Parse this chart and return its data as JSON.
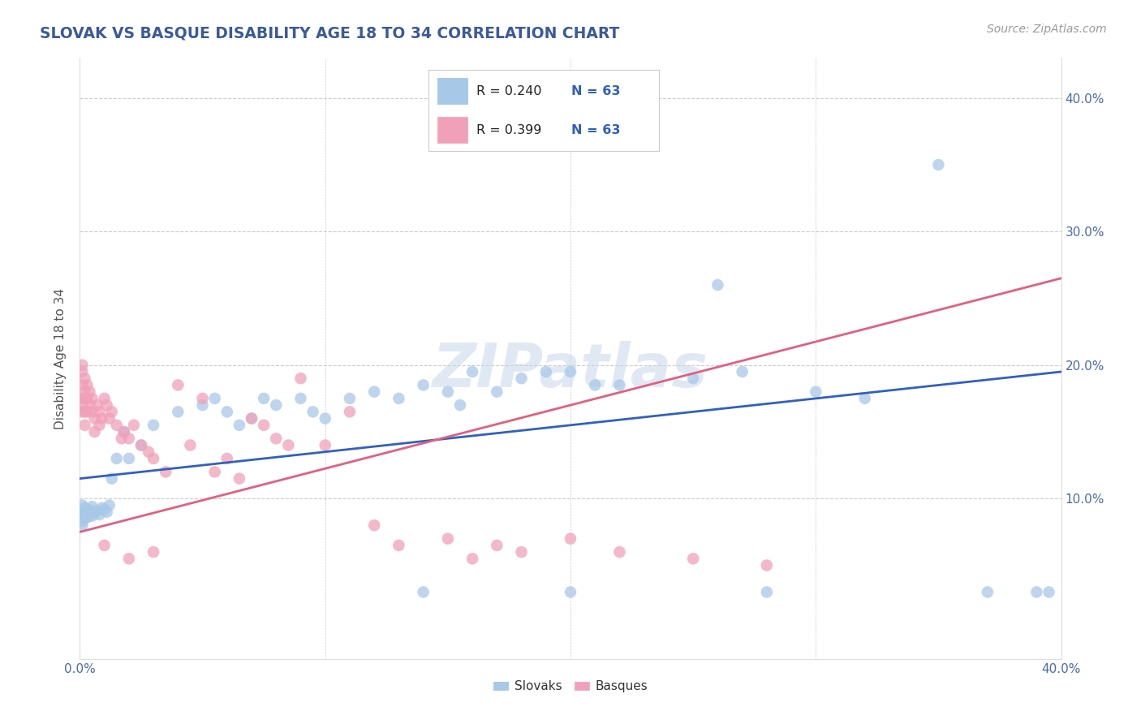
{
  "title": "SLOVAK VS BASQUE DISABILITY AGE 18 TO 34 CORRELATION CHART",
  "source_text": "Source: ZipAtlas.com",
  "ylabel": "Disability Age 18 to 34",
  "xlim": [
    0.0,
    0.4
  ],
  "ylim": [
    -0.02,
    0.43
  ],
  "x_ticks": [
    0.0,
    0.1,
    0.2,
    0.3,
    0.4
  ],
  "x_tick_labels": [
    "0.0%",
    "",
    "",
    "",
    "40.0%"
  ],
  "y_ticks": [
    0.0,
    0.1,
    0.2,
    0.3,
    0.4
  ],
  "y_tick_labels_right": [
    "",
    "10.0%",
    "20.0%",
    "30.0%",
    "40.0%"
  ],
  "slovak_color": "#a8c8e8",
  "basque_color": "#f0a0b8",
  "slovak_line_color": "#3060c0",
  "basque_line_color": "#e06080",
  "slovak_R": 0.24,
  "basque_R": 0.399,
  "N": 63,
  "watermark": "ZIPatlas",
  "watermark_color": "#c8d8ea",
  "background_color": "#ffffff",
  "grid_color": "#cccccc",
  "title_color": "#3a5a9a",
  "axis_text_color": "#4a6aaa",
  "legend_text_color": "#3060c0",
  "sk_line_y0": 0.115,
  "sk_line_y1": 0.195,
  "bq_line_y0": 0.075,
  "bq_line_y1": 0.265,
  "slovak_x": [
    0.001,
    0.001,
    0.001,
    0.001,
    0.001,
    0.002,
    0.002,
    0.002,
    0.003,
    0.003,
    0.003,
    0.004,
    0.005,
    0.005,
    0.006,
    0.007,
    0.008,
    0.009,
    0.01,
    0.011,
    0.012,
    0.013,
    0.015,
    0.018,
    0.02,
    0.025,
    0.03,
    0.04,
    0.05,
    0.055,
    0.06,
    0.065,
    0.07,
    0.075,
    0.08,
    0.09,
    0.095,
    0.1,
    0.11,
    0.12,
    0.13,
    0.14,
    0.15,
    0.155,
    0.16,
    0.17,
    0.18,
    0.19,
    0.2,
    0.21,
    0.22,
    0.25,
    0.26,
    0.27,
    0.3,
    0.32,
    0.35,
    0.37,
    0.39,
    0.395,
    0.14,
    0.2,
    0.28
  ],
  "slovak_y": [
    0.095,
    0.09,
    0.087,
    0.083,
    0.08,
    0.093,
    0.088,
    0.085,
    0.092,
    0.089,
    0.086,
    0.091,
    0.094,
    0.087,
    0.089,
    0.091,
    0.088,
    0.093,
    0.092,
    0.09,
    0.095,
    0.115,
    0.13,
    0.15,
    0.13,
    0.14,
    0.155,
    0.165,
    0.17,
    0.175,
    0.165,
    0.155,
    0.16,
    0.175,
    0.17,
    0.175,
    0.165,
    0.16,
    0.175,
    0.18,
    0.175,
    0.185,
    0.18,
    0.17,
    0.195,
    0.18,
    0.19,
    0.195,
    0.195,
    0.185,
    0.185,
    0.19,
    0.26,
    0.195,
    0.18,
    0.175,
    0.35,
    0.03,
    0.03,
    0.03,
    0.03,
    0.03,
    0.03
  ],
  "basque_x": [
    0.001,
    0.001,
    0.001,
    0.001,
    0.001,
    0.001,
    0.002,
    0.002,
    0.002,
    0.002,
    0.002,
    0.003,
    0.003,
    0.003,
    0.004,
    0.004,
    0.005,
    0.005,
    0.006,
    0.006,
    0.007,
    0.008,
    0.008,
    0.009,
    0.01,
    0.011,
    0.012,
    0.013,
    0.015,
    0.017,
    0.018,
    0.02,
    0.022,
    0.025,
    0.028,
    0.03,
    0.035,
    0.04,
    0.045,
    0.05,
    0.055,
    0.06,
    0.065,
    0.07,
    0.075,
    0.08,
    0.085,
    0.09,
    0.1,
    0.11,
    0.12,
    0.13,
    0.15,
    0.16,
    0.17,
    0.18,
    0.2,
    0.22,
    0.25,
    0.28,
    0.01,
    0.02,
    0.03
  ],
  "basque_y": [
    0.2,
    0.195,
    0.185,
    0.175,
    0.17,
    0.165,
    0.19,
    0.18,
    0.175,
    0.165,
    0.155,
    0.185,
    0.175,
    0.165,
    0.18,
    0.17,
    0.175,
    0.165,
    0.16,
    0.15,
    0.17,
    0.165,
    0.155,
    0.16,
    0.175,
    0.17,
    0.16,
    0.165,
    0.155,
    0.145,
    0.15,
    0.145,
    0.155,
    0.14,
    0.135,
    0.13,
    0.12,
    0.185,
    0.14,
    0.175,
    0.12,
    0.13,
    0.115,
    0.16,
    0.155,
    0.145,
    0.14,
    0.19,
    0.14,
    0.165,
    0.08,
    0.065,
    0.07,
    0.055,
    0.065,
    0.06,
    0.07,
    0.06,
    0.055,
    0.05,
    0.065,
    0.055,
    0.06
  ]
}
